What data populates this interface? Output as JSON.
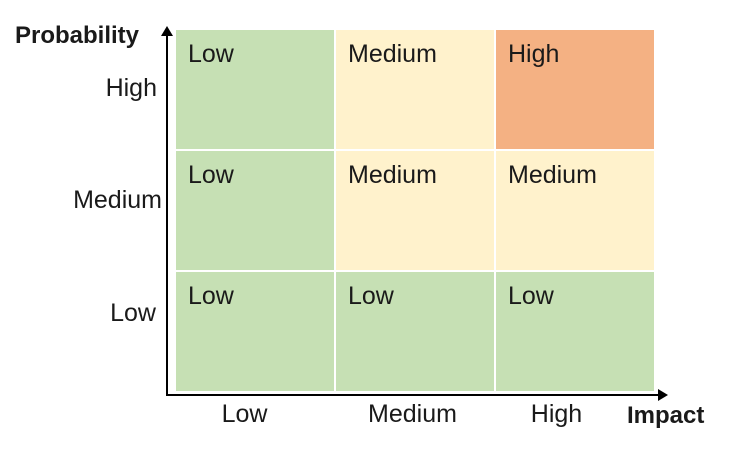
{
  "y_axis_title": "Probability",
  "x_axis_title": "Impact",
  "row_labels": {
    "high": "High",
    "medium": "Medium",
    "low": "Low"
  },
  "col_labels": [
    "Low",
    "Medium",
    "High"
  ],
  "colors": {
    "low": "#c6e0b4",
    "medium": "#fff2cc",
    "high": "#f4b183"
  },
  "matrix": [
    [
      "Low",
      "Medium",
      "High"
    ],
    [
      "Low",
      "Medium",
      "Medium"
    ],
    [
      "Low",
      "Low",
      "Low"
    ]
  ]
}
